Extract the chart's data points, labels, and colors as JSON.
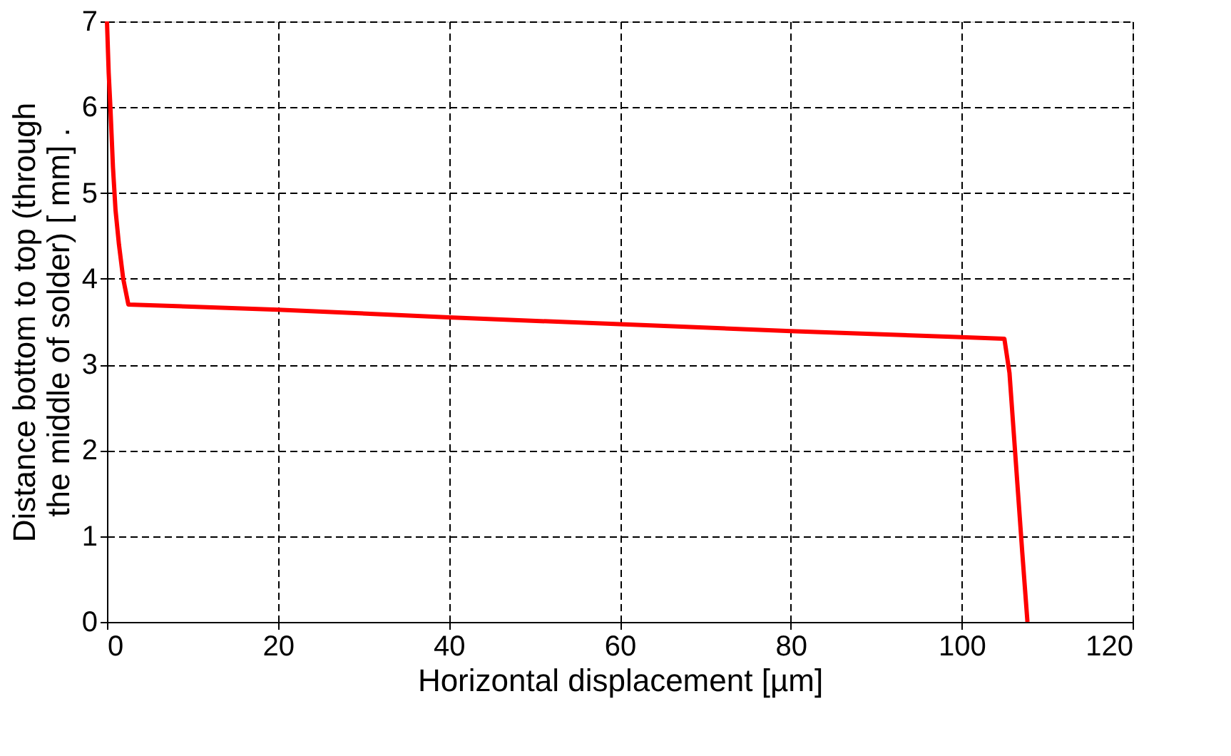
{
  "chart_data": {
    "type": "line",
    "xlabel": "Horizontal displacement [µm]",
    "ylabel": "Distance  bottom to top (through\nthe middle of solder) [ mm] .",
    "series": [
      {
        "color": "#ff0000",
        "x": [
          0,
          0.2,
          0.4,
          0.7,
          1.0,
          1.4,
          1.9,
          2.5,
          20,
          40,
          60,
          80,
          100,
          105,
          105.6,
          106.1,
          106.6,
          107.1,
          107.7
        ],
        "values": [
          7,
          6.4,
          6,
          5.3,
          4.8,
          4.4,
          4,
          3.7,
          3.64,
          3.55,
          3.47,
          3.39,
          3.32,
          3.3,
          2.9,
          2.2,
          1.5,
          0.8,
          0
        ]
      }
    ],
    "xlim": [
      0,
      120
    ],
    "xticks": [
      0,
      20,
      40,
      60,
      80,
      100,
      120
    ],
    "ylim": [
      0,
      7
    ],
    "yticks": [
      0,
      1,
      2,
      3,
      4,
      5,
      6,
      7
    ],
    "grid": true,
    "line_style": "solid",
    "marker": "none"
  }
}
